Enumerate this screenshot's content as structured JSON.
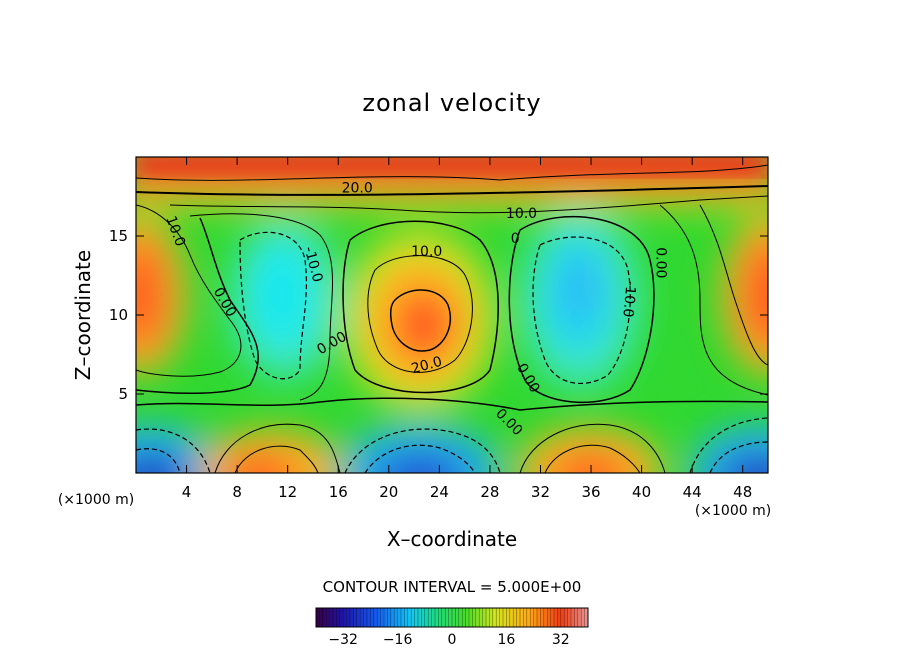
{
  "chart_data": {
    "type": "heatmap",
    "title": "zonal velocity",
    "xlabel": "X–coordinate",
    "ylabel": "Z–coordinate",
    "x_unit": "(×1000 m)",
    "z_unit": "(×1000 m)",
    "x_ticks": [
      4,
      8,
      12,
      16,
      20,
      24,
      28,
      32,
      36,
      40,
      44,
      48
    ],
    "z_ticks": [
      5,
      10,
      15
    ],
    "xlim": [
      0,
      50
    ],
    "zlim": [
      0,
      20
    ],
    "contour_interval_text": "CONTOUR INTERVAL =  5.000E+00",
    "colorbar": {
      "range": [
        -40,
        40
      ],
      "ticks": [
        -32,
        -16,
        0,
        16,
        32
      ],
      "colormap": "rainbow"
    },
    "contour_labels": [
      {
        "text": "20.0",
        "x": 17.5,
        "z": 18.0,
        "rot": 0
      },
      {
        "text": "10.0",
        "x": 30.5,
        "z": 16.4,
        "rot": 0
      },
      {
        "text": "10.0",
        "x": 3.1,
        "z": 15.3,
        "rot": 70
      },
      {
        "text": "-10.0",
        "x": 14.0,
        "z": 13.2,
        "rot": 75
      },
      {
        "text": "10.0",
        "x": 23.0,
        "z": 14.0,
        "rot": 0
      },
      {
        "text": "0",
        "x": 30.0,
        "z": 14.8,
        "rot": 0
      },
      {
        "text": "0.00",
        "x": 41.5,
        "z": 13.3,
        "rot": 90
      },
      {
        "text": "-10.0",
        "x": 39.0,
        "z": 11.0,
        "rot": 95
      },
      {
        "text": "0.00",
        "x": 7.0,
        "z": 10.8,
        "rot": 60
      },
      {
        "text": "0.00",
        "x": 15.5,
        "z": 8.2,
        "rot": -30
      },
      {
        "text": "20.0",
        "x": 23.0,
        "z": 6.8,
        "rot": -15
      },
      {
        "text": "0.00",
        "x": 31.0,
        "z": 6.0,
        "rot": 60
      },
      {
        "text": "0.00",
        "x": 29.5,
        "z": 3.2,
        "rot": 45
      }
    ]
  }
}
